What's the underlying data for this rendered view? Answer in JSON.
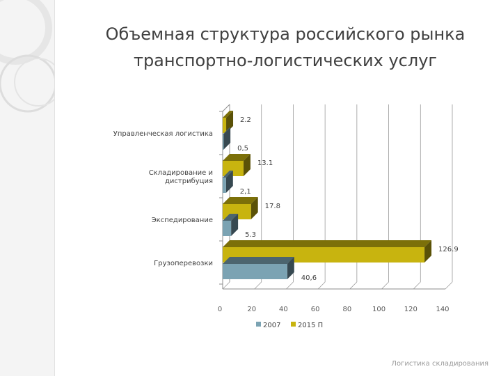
{
  "slide": {
    "title_line1": "Объемная структура российского рынка",
    "title_line2": "транспортно-логистических услуг",
    "footer": "Логистика складирования"
  },
  "chart_data": {
    "type": "bar",
    "orientation": "horizontal",
    "three_d": true,
    "categories": [
      "Управленческая логистика",
      "Складирование и дистрибуция",
      "Экспедирование",
      "Грузоперевозки"
    ],
    "series": [
      {
        "name": "2007",
        "values": [
          0.5,
          2.1,
          5.3,
          40.6
        ],
        "value_labels": [
          "0,5",
          "2,1",
          "5.3",
          "40,6"
        ],
        "color": "#7ba3b3"
      },
      {
        "name": "2015 П",
        "values": [
          2.2,
          13.1,
          17.8,
          126.9
        ],
        "value_labels": [
          "2.2",
          "13.1",
          "17.8",
          "126.9"
        ],
        "color": "#c8b40f"
      }
    ],
    "xlim": [
      0,
      140
    ],
    "xticks": [
      0,
      20,
      40,
      60,
      80,
      100,
      120,
      140
    ],
    "grid": true,
    "legend": "bottom"
  }
}
